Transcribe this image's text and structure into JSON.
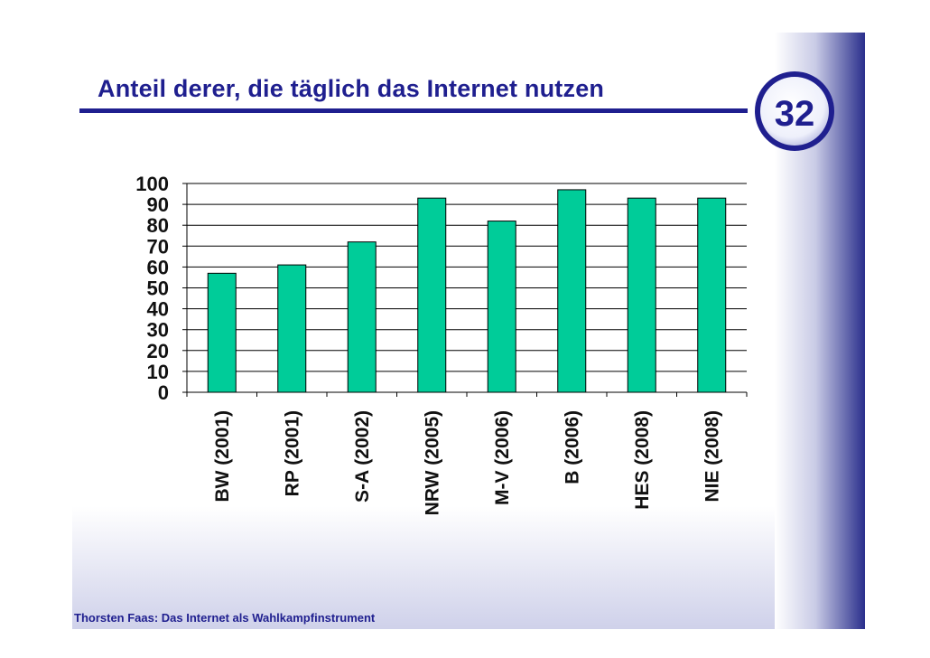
{
  "slide": {
    "title": "Anteil derer, die täglich das Internet nutzen",
    "page_number": "32",
    "footer": "Thorsten Faas: Das Internet als Wahlkampfinstrument"
  },
  "colors": {
    "bar": "#00cc99",
    "title_text": "#1f1f8f",
    "accent_band": "#2a2f8c"
  },
  "chart_data": {
    "type": "bar",
    "categories": [
      "BW (2001)",
      "RP (2001)",
      "S-A (2002)",
      "NRW (2005)",
      "M-V (2006)",
      "B (2006)",
      "HES (2008)",
      "NIE (2008)"
    ],
    "values": [
      57,
      61,
      72,
      93,
      82,
      97,
      93,
      93
    ],
    "ylim": [
      0,
      100
    ],
    "yticks": [
      0,
      10,
      20,
      30,
      40,
      50,
      60,
      70,
      80,
      90,
      100
    ],
    "grid": true,
    "legend": "none"
  }
}
